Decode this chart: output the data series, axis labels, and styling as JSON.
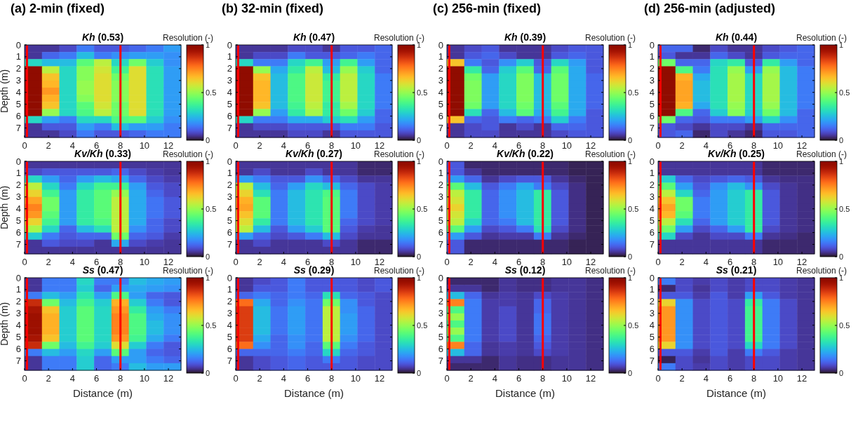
{
  "chart_data": [
    {
      "type": "heatmap",
      "title": "(a) 2-min (fixed)",
      "subtitle": "Kh (0.53)",
      "ylabel": "Depth (m)",
      "clabel": "Resolution (-)",
      "x": [
        0.725,
        2.175,
        3.625,
        5.075,
        6.525,
        7.975,
        9.425,
        10.875,
        12.325
      ],
      "xlim": [
        0,
        13.05
      ],
      "xticks": [
        0,
        2,
        4,
        6,
        8,
        10,
        12
      ],
      "ylim": [
        7.8,
        0
      ],
      "yticks": [
        0,
        1,
        2,
        3,
        4,
        5,
        6,
        7
      ],
      "clim": [
        0,
        1
      ],
      "cticks": [
        0,
        0.5,
        1
      ],
      "ref_lines": [
        {
          "axis": "x",
          "value": 0.2,
          "color": "#ff0000"
        },
        {
          "axis": "x",
          "value": 8,
          "color": "#ff0000"
        }
      ],
      "cells": [
        [
          0.05,
          0.05,
          0.08,
          0.15,
          0.1,
          0.1,
          0.12,
          0.15,
          0.2
        ],
        [
          0.05,
          0.12,
          0.15,
          0.25,
          0.15,
          0.18,
          0.2,
          0.2,
          0.18
        ],
        [
          0.3,
          0.25,
          0.25,
          0.42,
          0.55,
          0.3,
          0.45,
          0.28,
          0.18
        ],
        [
          1,
          0.55,
          0.3,
          0.48,
          0.58,
          0.38,
          0.6,
          0.32,
          0.2
        ],
        [
          1,
          0.65,
          0.3,
          0.48,
          0.6,
          0.45,
          0.6,
          0.32,
          0.2
        ],
        [
          1,
          0.67,
          0.3,
          0.5,
          0.6,
          0.48,
          0.6,
          0.32,
          0.2
        ],
        [
          1,
          0.72,
          0.3,
          0.5,
          0.6,
          0.48,
          0.6,
          0.32,
          0.2
        ],
        [
          1,
          0.68,
          0.3,
          0.48,
          0.6,
          0.48,
          0.6,
          0.32,
          0.2
        ],
        [
          1,
          0.65,
          0.3,
          0.42,
          0.58,
          0.45,
          0.6,
          0.32,
          0.2
        ],
        [
          1,
          0.5,
          0.3,
          0.4,
          0.55,
          0.45,
          0.6,
          0.32,
          0.2
        ],
        [
          0.3,
          0.2,
          0.15,
          0.3,
          0.3,
          0.4,
          0.42,
          0.28,
          0.18
        ],
        [
          0.05,
          0.1,
          0.1,
          0.2,
          0.15,
          0.25,
          0.2,
          0.2,
          0.15
        ],
        [
          0.05,
          0.05,
          0.08,
          0.15,
          0.1,
          0.1,
          0.12,
          0.15,
          0.15
        ]
      ]
    },
    {
      "type": "heatmap",
      "title": "(b) 32-min (fixed)",
      "subtitle": "Kh (0.47)",
      "clabel": "Resolution (-)",
      "x": [
        0.725,
        2.175,
        3.625,
        5.075,
        6.525,
        7.975,
        9.425,
        10.875,
        12.325
      ],
      "xlim": [
        0,
        13.05
      ],
      "xticks": [
        0,
        2,
        4,
        6,
        8,
        10,
        12
      ],
      "ylim": [
        7.8,
        0
      ],
      "yticks": [
        0,
        1,
        2,
        3,
        4,
        5,
        6,
        7
      ],
      "clim": [
        0,
        1
      ],
      "cticks": [
        0,
        0.5,
        1
      ],
      "ref_lines": [
        {
          "axis": "x",
          "value": 0.2,
          "color": "#ff0000"
        },
        {
          "axis": "x",
          "value": 8,
          "color": "#ff0000"
        }
      ],
      "cells": [
        [
          0.05,
          0.05,
          0.05,
          0.08,
          0.08,
          0.05,
          0.1,
          0.1,
          0.12
        ],
        [
          0.05,
          0.08,
          0.08,
          0.15,
          0.1,
          0.1,
          0.12,
          0.15,
          0.12
        ],
        [
          0.3,
          0.15,
          0.15,
          0.3,
          0.38,
          0.2,
          0.38,
          0.2,
          0.12
        ],
        [
          1,
          0.5,
          0.22,
          0.35,
          0.55,
          0.25,
          0.5,
          0.28,
          0.12
        ],
        [
          1,
          0.65,
          0.25,
          0.4,
          0.57,
          0.35,
          0.55,
          0.3,
          0.15
        ],
        [
          1,
          0.67,
          0.25,
          0.4,
          0.57,
          0.38,
          0.55,
          0.3,
          0.15
        ],
        [
          1,
          0.67,
          0.25,
          0.4,
          0.57,
          0.38,
          0.55,
          0.3,
          0.15
        ],
        [
          1,
          0.67,
          0.25,
          0.4,
          0.57,
          0.38,
          0.55,
          0.3,
          0.15
        ],
        [
          1,
          0.65,
          0.25,
          0.38,
          0.55,
          0.35,
          0.52,
          0.3,
          0.15
        ],
        [
          1,
          0.5,
          0.2,
          0.35,
          0.52,
          0.35,
          0.45,
          0.28,
          0.12
        ],
        [
          0.3,
          0.15,
          0.15,
          0.22,
          0.22,
          0.28,
          0.32,
          0.2,
          0.12
        ],
        [
          0.05,
          0.08,
          0.08,
          0.1,
          0.1,
          0.1,
          0.15,
          0.15,
          0.1
        ],
        [
          0.05,
          0.05,
          0.05,
          0.08,
          0.08,
          0.05,
          0.1,
          0.1,
          0.1
        ]
      ]
    },
    {
      "type": "heatmap",
      "title": "(c) 256-min (fixed)",
      "subtitle": "Kh (0.39)",
      "clabel": "Resolution (-)",
      "x": [
        0.725,
        2.175,
        3.625,
        5.075,
        6.525,
        7.975,
        9.425,
        10.875,
        12.325
      ],
      "xlim": [
        0,
        13.05
      ],
      "xticks": [
        0,
        2,
        4,
        6,
        8,
        10,
        12
      ],
      "ylim": [
        7.8,
        0
      ],
      "yticks": [
        0,
        1,
        2,
        3,
        4,
        5,
        6,
        7
      ],
      "clim": [
        0,
        1
      ],
      "cticks": [
        0,
        0.5,
        1
      ],
      "ref_lines": [
        {
          "axis": "x",
          "value": 0.2,
          "color": "#ff0000"
        },
        {
          "axis": "x",
          "value": 8,
          "color": "#ff0000"
        }
      ],
      "cells": [
        [
          0.05,
          0.08,
          0.1,
          0.05,
          0.05,
          0.05,
          0.08,
          0.1,
          0.1
        ],
        [
          0.05,
          0.1,
          0.12,
          0.08,
          0.05,
          0.05,
          0.1,
          0.12,
          0.1
        ],
        [
          0.65,
          0.15,
          0.1,
          0.18,
          0.28,
          0.1,
          0.3,
          0.2,
          0.1
        ],
        [
          1,
          0.35,
          0.12,
          0.28,
          0.42,
          0.12,
          0.42,
          0.22,
          0.1
        ],
        [
          1,
          0.45,
          0.2,
          0.3,
          0.47,
          0.25,
          0.45,
          0.22,
          0.12
        ],
        [
          1,
          0.47,
          0.2,
          0.3,
          0.47,
          0.25,
          0.45,
          0.22,
          0.12
        ],
        [
          1,
          0.47,
          0.2,
          0.3,
          0.47,
          0.25,
          0.45,
          0.22,
          0.12
        ],
        [
          1,
          0.47,
          0.2,
          0.3,
          0.47,
          0.25,
          0.45,
          0.22,
          0.12
        ],
        [
          1,
          0.45,
          0.2,
          0.3,
          0.45,
          0.25,
          0.42,
          0.22,
          0.12
        ],
        [
          1,
          0.32,
          0.12,
          0.25,
          0.42,
          0.22,
          0.38,
          0.22,
          0.1
        ],
        [
          0.65,
          0.12,
          0.1,
          0.15,
          0.12,
          0.15,
          0.28,
          0.15,
          0.1
        ],
        [
          0.05,
          0.08,
          0.1,
          0.05,
          0.08,
          0.05,
          0.12,
          0.12,
          0.1
        ],
        [
          0.05,
          0.08,
          0.08,
          0.05,
          0.05,
          0.05,
          0.08,
          0.1,
          0.1
        ]
      ]
    },
    {
      "type": "heatmap",
      "title": "(d) 256-min (adjusted)",
      "subtitle": "Kh (0.44)",
      "clabel": "Resolution (-)",
      "x": [
        0.725,
        2.175,
        3.625,
        5.075,
        6.525,
        7.975,
        9.425,
        10.875,
        12.325
      ],
      "xlim": [
        0,
        13.05
      ],
      "xticks": [
        0,
        2,
        4,
        6,
        8,
        10,
        12
      ],
      "ylim": [
        7.8,
        0
      ],
      "yticks": [
        0,
        1,
        2,
        3,
        4,
        5,
        6,
        7
      ],
      "clim": [
        0,
        1
      ],
      "cticks": [
        0,
        0.5,
        1
      ],
      "ref_lines": [
        {
          "axis": "x",
          "value": 0.2,
          "color": "#ff0000"
        },
        {
          "axis": "x",
          "value": 8,
          "color": "#ff0000"
        }
      ],
      "cells": [
        [
          0.12,
          0.12,
          0.03,
          0.08,
          0.05,
          0.05,
          0.08,
          0.1,
          0.12
        ],
        [
          0.1,
          0.05,
          0.05,
          0.12,
          0.08,
          0.05,
          0.1,
          0.12,
          0.12
        ],
        [
          0.45,
          0.12,
          0.12,
          0.3,
          0.35,
          0.1,
          0.35,
          0.2,
          0.12
        ],
        [
          1,
          0.4,
          0.15,
          0.32,
          0.5,
          0.2,
          0.5,
          0.25,
          0.15
        ],
        [
          1,
          0.68,
          0.22,
          0.32,
          0.52,
          0.3,
          0.52,
          0.25,
          0.15
        ],
        [
          1,
          0.7,
          0.25,
          0.32,
          0.52,
          0.3,
          0.52,
          0.25,
          0.15
        ],
        [
          1,
          0.7,
          0.25,
          0.32,
          0.52,
          0.3,
          0.52,
          0.25,
          0.15
        ],
        [
          1,
          0.7,
          0.25,
          0.32,
          0.52,
          0.3,
          0.52,
          0.25,
          0.15
        ],
        [
          1,
          0.68,
          0.22,
          0.32,
          0.5,
          0.3,
          0.5,
          0.25,
          0.15
        ],
        [
          1,
          0.4,
          0.12,
          0.28,
          0.48,
          0.28,
          0.45,
          0.25,
          0.12
        ],
        [
          0.45,
          0.12,
          0.1,
          0.15,
          0.15,
          0.2,
          0.3,
          0.18,
          0.12
        ],
        [
          0.1,
          0.08,
          0.05,
          0.08,
          0.08,
          0.05,
          0.12,
          0.12,
          0.12
        ],
        [
          0.1,
          0.12,
          0.03,
          0.08,
          0.05,
          0.03,
          0.1,
          0.1,
          0.12
        ]
      ]
    },
    {
      "type": "heatmap",
      "subtitle": "Kv/Kh (0.33)",
      "ylabel": "Depth (m)",
      "clabel": "Resolution (-)",
      "x": [
        0.725,
        2.175,
        3.625,
        5.075,
        6.525,
        7.975,
        9.425,
        10.875,
        12.325
      ],
      "xlim": [
        0,
        13.05
      ],
      "xticks": [
        0,
        2,
        4,
        6,
        8,
        10,
        12
      ],
      "ylim": [
        7.8,
        0
      ],
      "yticks": [
        0,
        1,
        2,
        3,
        4,
        5,
        6,
        7
      ],
      "clim": [
        0,
        1
      ],
      "cticks": [
        0,
        0.5,
        1
      ],
      "ref_lines": [
        {
          "axis": "x",
          "value": 0.2,
          "color": "#ff0000"
        },
        {
          "axis": "x",
          "value": 8,
          "color": "#ff0000"
        }
      ],
      "cells": [
        [
          0.05,
          0.05,
          0.05,
          0.05,
          0.05,
          0.05,
          0.05,
          0.05,
          0.05
        ],
        [
          0.08,
          0.1,
          0.1,
          0.1,
          0.1,
          0.12,
          0.08,
          0.06,
          0.05
        ],
        [
          0.3,
          0.2,
          0.12,
          0.2,
          0.25,
          0.22,
          0.12,
          0.08,
          0.06
        ],
        [
          0.55,
          0.3,
          0.15,
          0.3,
          0.38,
          0.38,
          0.2,
          0.1,
          0.08
        ],
        [
          0.62,
          0.38,
          0.2,
          0.35,
          0.42,
          0.5,
          0.22,
          0.12,
          0.08
        ],
        [
          0.7,
          0.45,
          0.2,
          0.35,
          0.42,
          0.55,
          0.22,
          0.14,
          0.1
        ],
        [
          0.75,
          0.45,
          0.2,
          0.35,
          0.42,
          0.55,
          0.22,
          0.14,
          0.1
        ],
        [
          0.72,
          0.42,
          0.2,
          0.35,
          0.42,
          0.55,
          0.22,
          0.14,
          0.1
        ],
        [
          0.62,
          0.38,
          0.2,
          0.35,
          0.4,
          0.55,
          0.22,
          0.12,
          0.08
        ],
        [
          0.52,
          0.3,
          0.12,
          0.25,
          0.32,
          0.55,
          0.18,
          0.12,
          0.08
        ],
        [
          0.28,
          0.15,
          0.1,
          0.12,
          0.12,
          0.45,
          0.12,
          0.1,
          0.06
        ],
        [
          0.05,
          0.1,
          0.08,
          0.08,
          0.05,
          0.22,
          0.08,
          0.06,
          0.05
        ],
        [
          0.05,
          0.05,
          0.05,
          0.05,
          0.05,
          0.05,
          0.05,
          0.05,
          0.05
        ]
      ]
    },
    {
      "type": "heatmap",
      "subtitle": "Kv/Kh (0.27)",
      "clabel": "Resolution (-)",
      "x": [
        0.725,
        2.175,
        3.625,
        5.075,
        6.525,
        7.975,
        9.425,
        10.875,
        12.325
      ],
      "xlim": [
        0,
        13.05
      ],
      "xticks": [
        0,
        2,
        4,
        6,
        8,
        10,
        12
      ],
      "ylim": [
        7.8,
        0
      ],
      "yticks": [
        0,
        1,
        2,
        3,
        4,
        5,
        6,
        7
      ],
      "clim": [
        0,
        1
      ],
      "cticks": [
        0,
        0.5,
        1
      ],
      "ref_lines": [
        {
          "axis": "x",
          "value": 0.2,
          "color": "#ff0000"
        },
        {
          "axis": "x",
          "value": 8,
          "color": "#ff0000"
        }
      ],
      "cells": [
        [
          0.05,
          0.05,
          0.05,
          0.05,
          0.05,
          0.05,
          0.05,
          0.03,
          0.03
        ],
        [
          0.05,
          0.08,
          0.05,
          0.05,
          0.08,
          0.05,
          0.05,
          0.03,
          0.03
        ],
        [
          0.2,
          0.15,
          0.1,
          0.1,
          0.18,
          0.12,
          0.08,
          0.05,
          0.05
        ],
        [
          0.55,
          0.25,
          0.12,
          0.2,
          0.3,
          0.25,
          0.12,
          0.08,
          0.06
        ],
        [
          0.62,
          0.32,
          0.15,
          0.25,
          0.33,
          0.4,
          0.15,
          0.08,
          0.06
        ],
        [
          0.68,
          0.42,
          0.15,
          0.25,
          0.33,
          0.42,
          0.15,
          0.08,
          0.06
        ],
        [
          0.7,
          0.42,
          0.15,
          0.25,
          0.33,
          0.42,
          0.15,
          0.08,
          0.06
        ],
        [
          0.65,
          0.42,
          0.15,
          0.25,
          0.33,
          0.42,
          0.15,
          0.08,
          0.06
        ],
        [
          0.6,
          0.35,
          0.15,
          0.25,
          0.33,
          0.42,
          0.12,
          0.08,
          0.06
        ],
        [
          0.55,
          0.25,
          0.1,
          0.2,
          0.28,
          0.42,
          0.1,
          0.06,
          0.05
        ],
        [
          0.2,
          0.12,
          0.08,
          0.1,
          0.15,
          0.25,
          0.08,
          0.05,
          0.05
        ],
        [
          0.05,
          0.08,
          0.05,
          0.05,
          0.05,
          0.08,
          0.05,
          0.03,
          0.03
        ],
        [
          0.05,
          0.05,
          0.05,
          0.05,
          0.05,
          0.05,
          0.05,
          0.03,
          0.03
        ]
      ]
    },
    {
      "type": "heatmap",
      "subtitle": "Kv/Kh (0.22)",
      "clabel": "Resolution (-)",
      "x": [
        0.725,
        2.175,
        3.625,
        5.075,
        6.525,
        7.975,
        9.425,
        10.875,
        12.325
      ],
      "xlim": [
        0,
        13.05
      ],
      "xticks": [
        0,
        2,
        4,
        6,
        8,
        10,
        12
      ],
      "ylim": [
        7.8,
        0
      ],
      "yticks": [
        0,
        1,
        2,
        3,
        4,
        5,
        6,
        7
      ],
      "clim": [
        0,
        1
      ],
      "cticks": [
        0,
        0.5,
        1
      ],
      "ref_lines": [
        {
          "axis": "x",
          "value": 0.2,
          "color": "#ff0000"
        },
        {
          "axis": "x",
          "value": 8,
          "color": "#ff0000"
        }
      ],
      "cells": [
        [
          0.1,
          0.03,
          0.03,
          0.03,
          0.03,
          0.03,
          0.03,
          0.02,
          0.02
        ],
        [
          0.1,
          0.05,
          0.03,
          0.03,
          0.03,
          0.03,
          0.03,
          0.02,
          0.02
        ],
        [
          0.2,
          0.12,
          0.05,
          0.08,
          0.1,
          0.1,
          0.05,
          0.03,
          0.02
        ],
        [
          0.42,
          0.25,
          0.1,
          0.15,
          0.22,
          0.15,
          0.08,
          0.04,
          0.02
        ],
        [
          0.55,
          0.35,
          0.12,
          0.18,
          0.25,
          0.35,
          0.1,
          0.04,
          0.02
        ],
        [
          0.58,
          0.35,
          0.12,
          0.18,
          0.25,
          0.35,
          0.1,
          0.04,
          0.02
        ],
        [
          0.62,
          0.35,
          0.12,
          0.18,
          0.25,
          0.35,
          0.1,
          0.04,
          0.02
        ],
        [
          0.58,
          0.35,
          0.12,
          0.18,
          0.25,
          0.35,
          0.1,
          0.04,
          0.02
        ],
        [
          0.55,
          0.3,
          0.12,
          0.15,
          0.25,
          0.35,
          0.1,
          0.04,
          0.02
        ],
        [
          0.42,
          0.2,
          0.08,
          0.1,
          0.15,
          0.32,
          0.08,
          0.04,
          0.02
        ],
        [
          0.2,
          0.1,
          0.05,
          0.06,
          0.06,
          0.15,
          0.05,
          0.03,
          0.02
        ],
        [
          0.1,
          0.03,
          0.03,
          0.03,
          0.03,
          0.03,
          0.03,
          0.02,
          0.02
        ],
        [
          0.1,
          0.03,
          0.03,
          0.03,
          0.03,
          0.03,
          0.03,
          0.02,
          0.02
        ]
      ]
    },
    {
      "type": "heatmap",
      "subtitle": "Kv/Kh (0.25)",
      "clabel": "Resolution (-)",
      "x": [
        0.725,
        2.175,
        3.625,
        5.075,
        6.525,
        7.975,
        9.425,
        10.875,
        12.325
      ],
      "xlim": [
        0,
        13.05
      ],
      "xticks": [
        0,
        2,
        4,
        6,
        8,
        10,
        12
      ],
      "ylim": [
        7.8,
        0
      ],
      "yticks": [
        0,
        1,
        2,
        3,
        4,
        5,
        6,
        7
      ],
      "clim": [
        0,
        1
      ],
      "cticks": [
        0,
        0.5,
        1
      ],
      "ref_lines": [
        {
          "axis": "x",
          "value": 0.2,
          "color": "#ff0000"
        },
        {
          "axis": "x",
          "value": 8,
          "color": "#ff0000"
        }
      ],
      "cells": [
        [
          0.05,
          0.05,
          0.05,
          0.05,
          0.05,
          0.05,
          0.03,
          0.03,
          0.03
        ],
        [
          0.05,
          0.05,
          0.05,
          0.05,
          0.05,
          0.05,
          0.03,
          0.03,
          0.03
        ],
        [
          0.28,
          0.12,
          0.08,
          0.1,
          0.12,
          0.1,
          0.05,
          0.04,
          0.04
        ],
        [
          0.42,
          0.2,
          0.1,
          0.18,
          0.25,
          0.18,
          0.08,
          0.05,
          0.04
        ],
        [
          0.55,
          0.3,
          0.12,
          0.2,
          0.28,
          0.35,
          0.1,
          0.05,
          0.04
        ],
        [
          0.65,
          0.45,
          0.15,
          0.2,
          0.28,
          0.35,
          0.1,
          0.05,
          0.04
        ],
        [
          0.7,
          0.45,
          0.15,
          0.2,
          0.28,
          0.35,
          0.1,
          0.05,
          0.04
        ],
        [
          0.67,
          0.42,
          0.15,
          0.2,
          0.28,
          0.35,
          0.1,
          0.05,
          0.04
        ],
        [
          0.55,
          0.32,
          0.12,
          0.2,
          0.28,
          0.35,
          0.1,
          0.05,
          0.04
        ],
        [
          0.45,
          0.2,
          0.08,
          0.12,
          0.2,
          0.35,
          0.08,
          0.05,
          0.04
        ],
        [
          0.3,
          0.08,
          0.05,
          0.08,
          0.08,
          0.15,
          0.05,
          0.04,
          0.03
        ],
        [
          0.05,
          0.05,
          0.05,
          0.05,
          0.05,
          0.05,
          0.03,
          0.03,
          0.03
        ],
        [
          0.05,
          0.05,
          0.05,
          0.05,
          0.05,
          0.05,
          0.03,
          0.03,
          0.03
        ]
      ]
    },
    {
      "type": "heatmap",
      "subtitle": "Ss (0.47)",
      "xlabel": "Distance (m)",
      "ylabel": "Depth (m)",
      "clabel": "Resolution (-)",
      "x": [
        0.725,
        2.175,
        3.625,
        5.075,
        6.525,
        7.975,
        9.425,
        10.875,
        12.325
      ],
      "xlim": [
        0,
        13.05
      ],
      "xticks": [
        0,
        2,
        4,
        6,
        8,
        10,
        12
      ],
      "ylim": [
        7.8,
        0
      ],
      "yticks": [
        0,
        1,
        2,
        3,
        4,
        5,
        6,
        7
      ],
      "clim": [
        0,
        1
      ],
      "cticks": [
        0,
        0.5,
        1
      ],
      "ref_lines": [
        {
          "axis": "x",
          "value": 0.2,
          "color": "#ff0000"
        },
        {
          "axis": "x",
          "value": 8,
          "color": "#ff0000"
        }
      ],
      "cells": [
        [
          0.05,
          0.15,
          0.15,
          0.3,
          0.15,
          0.15,
          0.25,
          0.22,
          0.2
        ],
        [
          0.05,
          0.15,
          0.15,
          0.28,
          0.12,
          0.2,
          0.22,
          0.2,
          0.18
        ],
        [
          0.15,
          0.25,
          0.2,
          0.33,
          0.2,
          0.4,
          0.2,
          0.12,
          0.1
        ],
        [
          0.88,
          0.45,
          0.25,
          0.38,
          0.28,
          0.68,
          0.28,
          0.15,
          0.1
        ],
        [
          0.93,
          0.65,
          0.28,
          0.42,
          0.3,
          0.72,
          0.35,
          0.2,
          0.15
        ],
        [
          0.95,
          0.68,
          0.28,
          0.42,
          0.3,
          0.75,
          0.4,
          0.22,
          0.18
        ],
        [
          0.95,
          0.68,
          0.28,
          0.42,
          0.3,
          0.75,
          0.4,
          0.25,
          0.18
        ],
        [
          0.95,
          0.68,
          0.28,
          0.42,
          0.3,
          0.75,
          0.4,
          0.25,
          0.18
        ],
        [
          0.93,
          0.65,
          0.28,
          0.42,
          0.3,
          0.72,
          0.38,
          0.22,
          0.15
        ],
        [
          0.88,
          0.45,
          0.25,
          0.38,
          0.28,
          0.6,
          0.28,
          0.15,
          0.1
        ],
        [
          0.15,
          0.25,
          0.2,
          0.3,
          0.2,
          0.42,
          0.2,
          0.12,
          0.1
        ],
        [
          0.05,
          0.15,
          0.15,
          0.28,
          0.12,
          0.2,
          0.2,
          0.15,
          0.12
        ],
        [
          0.05,
          0.15,
          0.15,
          0.28,
          0.12,
          0.15,
          0.25,
          0.2,
          0.2
        ]
      ]
    },
    {
      "type": "heatmap",
      "subtitle": "Ss (0.29)",
      "xlabel": "Distance (m)",
      "clabel": "Resolution (-)",
      "x": [
        0.725,
        2.175,
        3.625,
        5.075,
        6.525,
        7.975,
        9.425,
        10.875,
        12.325
      ],
      "xlim": [
        0,
        13.05
      ],
      "xticks": [
        0,
        2,
        4,
        6,
        8,
        10,
        12
      ],
      "ylim": [
        7.8,
        0
      ],
      "yticks": [
        0,
        1,
        2,
        3,
        4,
        5,
        6,
        7
      ],
      "clim": [
        0,
        1
      ],
      "cticks": [
        0,
        0.5,
        1
      ],
      "ref_lines": [
        {
          "axis": "x",
          "value": 0.2,
          "color": "#ff0000"
        },
        {
          "axis": "x",
          "value": 8,
          "color": "#ff0000"
        }
      ],
      "cells": [
        [
          0.05,
          0.08,
          0.1,
          0.15,
          0.1,
          0.1,
          0.1,
          0.08,
          0.1
        ],
        [
          0.05,
          0.1,
          0.1,
          0.15,
          0.1,
          0.1,
          0.1,
          0.08,
          0.1
        ],
        [
          0.12,
          0.15,
          0.12,
          0.15,
          0.12,
          0.32,
          0.12,
          0.1,
          0.08
        ],
        [
          0.78,
          0.22,
          0.12,
          0.18,
          0.14,
          0.45,
          0.18,
          0.1,
          0.08
        ],
        [
          0.85,
          0.25,
          0.14,
          0.2,
          0.14,
          0.55,
          0.18,
          0.12,
          0.08
        ],
        [
          0.85,
          0.25,
          0.14,
          0.2,
          0.14,
          0.55,
          0.2,
          0.12,
          0.08
        ],
        [
          0.85,
          0.25,
          0.14,
          0.2,
          0.14,
          0.55,
          0.2,
          0.12,
          0.08
        ],
        [
          0.85,
          0.25,
          0.14,
          0.2,
          0.14,
          0.55,
          0.2,
          0.12,
          0.08
        ],
        [
          0.85,
          0.22,
          0.12,
          0.18,
          0.14,
          0.55,
          0.18,
          0.12,
          0.08
        ],
        [
          0.78,
          0.18,
          0.12,
          0.18,
          0.12,
          0.42,
          0.15,
          0.1,
          0.08
        ],
        [
          0.12,
          0.12,
          0.12,
          0.15,
          0.12,
          0.3,
          0.12,
          0.1,
          0.08
        ],
        [
          0.05,
          0.08,
          0.1,
          0.12,
          0.1,
          0.15,
          0.1,
          0.08,
          0.08
        ],
        [
          0.05,
          0.08,
          0.1,
          0.12,
          0.1,
          0.1,
          0.1,
          0.08,
          0.08
        ]
      ]
    },
    {
      "type": "heatmap",
      "subtitle": "Ss (0.12)",
      "xlabel": "Distance (m)",
      "clabel": "Resolution (-)",
      "x": [
        0.725,
        2.175,
        3.625,
        5.075,
        6.525,
        7.975,
        9.425,
        10.875,
        12.325
      ],
      "xlim": [
        0,
        13.05
      ],
      "xticks": [
        0,
        2,
        4,
        6,
        8,
        10,
        12
      ],
      "ylim": [
        7.8,
        0
      ],
      "yticks": [
        0,
        1,
        2,
        3,
        4,
        5,
        6,
        7
      ],
      "clim": [
        0,
        1
      ],
      "cticks": [
        0,
        0.5,
        1
      ],
      "ref_lines": [
        {
          "axis": "x",
          "value": 0.2,
          "color": "#ff0000"
        },
        {
          "axis": "x",
          "value": 8,
          "color": "#ff0000"
        }
      ],
      "cells": [
        [
          0.03,
          0.03,
          0.03,
          0.05,
          0.04,
          0.04,
          0.05,
          0.05,
          0.04
        ],
        [
          0.05,
          0.05,
          0.03,
          0.05,
          0.04,
          0.04,
          0.05,
          0.05,
          0.04
        ],
        [
          0.25,
          0.12,
          0.05,
          0.06,
          0.05,
          0.08,
          0.06,
          0.05,
          0.04
        ],
        [
          0.75,
          0.15,
          0.06,
          0.06,
          0.05,
          0.12,
          0.06,
          0.05,
          0.04
        ],
        [
          0.4,
          0.15,
          0.06,
          0.08,
          0.05,
          0.12,
          0.06,
          0.05,
          0.04
        ],
        [
          0.5,
          0.15,
          0.06,
          0.08,
          0.05,
          0.14,
          0.06,
          0.05,
          0.04
        ],
        [
          0.4,
          0.15,
          0.06,
          0.08,
          0.05,
          0.14,
          0.06,
          0.05,
          0.04
        ],
        [
          0.5,
          0.15,
          0.06,
          0.08,
          0.05,
          0.14,
          0.06,
          0.05,
          0.04
        ],
        [
          0.4,
          0.15,
          0.06,
          0.08,
          0.05,
          0.12,
          0.06,
          0.05,
          0.04
        ],
        [
          0.75,
          0.12,
          0.05,
          0.06,
          0.05,
          0.1,
          0.06,
          0.05,
          0.04
        ],
        [
          0.25,
          0.12,
          0.05,
          0.06,
          0.05,
          0.08,
          0.06,
          0.05,
          0.04
        ],
        [
          0.05,
          0.05,
          0.03,
          0.05,
          0.04,
          0.04,
          0.05,
          0.05,
          0.04
        ],
        [
          0.03,
          0.03,
          0.03,
          0.05,
          0.04,
          0.04,
          0.05,
          0.05,
          0.04
        ]
      ]
    },
    {
      "type": "heatmap",
      "subtitle": "Ss (0.21)",
      "xlabel": "Distance (m)",
      "clabel": "Resolution (-)",
      "x": [
        0.725,
        2.175,
        3.625,
        5.075,
        6.525,
        7.975,
        9.425,
        10.875,
        12.325
      ],
      "xlim": [
        0,
        13.05
      ],
      "xticks": [
        0,
        2,
        4,
        6,
        8,
        10,
        12
      ],
      "ylim": [
        7.8,
        0
      ],
      "yticks": [
        0,
        1,
        2,
        3,
        4,
        5,
        6,
        7
      ],
      "clim": [
        0,
        1
      ],
      "cticks": [
        0,
        0.5,
        1
      ],
      "ref_lines": [
        {
          "axis": "x",
          "value": 0.2,
          "color": "#ff0000"
        },
        {
          "axis": "x",
          "value": 8,
          "color": "#ff0000"
        }
      ],
      "cells": [
        [
          0.15,
          0.08,
          0.06,
          0.08,
          0.06,
          0.08,
          0.08,
          0.06,
          0.05
        ],
        [
          0.03,
          0.08,
          0.05,
          0.08,
          0.06,
          0.08,
          0.08,
          0.06,
          0.05
        ],
        [
          0.1,
          0.1,
          0.06,
          0.1,
          0.06,
          0.2,
          0.1,
          0.06,
          0.05
        ],
        [
          0.62,
          0.18,
          0.08,
          0.1,
          0.08,
          0.35,
          0.15,
          0.08,
          0.05
        ],
        [
          0.72,
          0.18,
          0.08,
          0.1,
          0.08,
          0.38,
          0.15,
          0.08,
          0.05
        ],
        [
          0.72,
          0.18,
          0.08,
          0.1,
          0.08,
          0.38,
          0.15,
          0.08,
          0.05
        ],
        [
          0.72,
          0.18,
          0.08,
          0.1,
          0.08,
          0.38,
          0.15,
          0.08,
          0.05
        ],
        [
          0.72,
          0.18,
          0.08,
          0.1,
          0.08,
          0.38,
          0.15,
          0.08,
          0.05
        ],
        [
          0.72,
          0.18,
          0.08,
          0.1,
          0.08,
          0.38,
          0.15,
          0.08,
          0.05
        ],
        [
          0.62,
          0.18,
          0.08,
          0.1,
          0.08,
          0.3,
          0.15,
          0.08,
          0.05
        ],
        [
          0.1,
          0.1,
          0.06,
          0.1,
          0.06,
          0.15,
          0.1,
          0.06,
          0.05
        ],
        [
          0.02,
          0.08,
          0.05,
          0.08,
          0.06,
          0.08,
          0.08,
          0.06,
          0.05
        ],
        [
          0.15,
          0.08,
          0.06,
          0.08,
          0.06,
          0.08,
          0.08,
          0.06,
          0.05
        ]
      ]
    }
  ]
}
